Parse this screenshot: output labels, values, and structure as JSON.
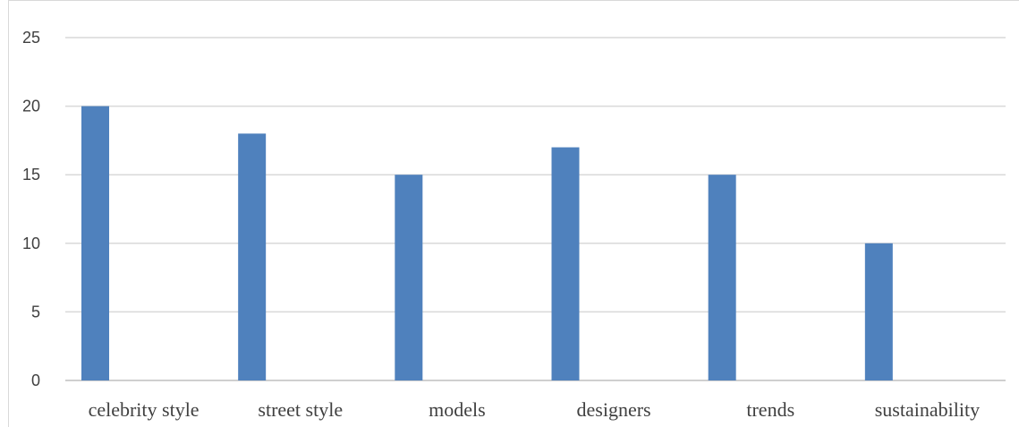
{
  "chart_data": {
    "type": "bar",
    "title": "",
    "xlabel": "",
    "ylabel": "",
    "categories": [
      "celebrity style",
      "street style",
      "models",
      "designers",
      "trends",
      "sustainability"
    ],
    "series": [
      {
        "values": [
          20,
          18,
          15,
          17,
          15,
          10
        ],
        "color": "#4f81bd"
      }
    ],
    "ylim": [
      0,
      25
    ],
    "yticks": [
      0,
      5,
      10,
      15,
      20,
      25
    ],
    "grid": true,
    "legend": "none"
  }
}
